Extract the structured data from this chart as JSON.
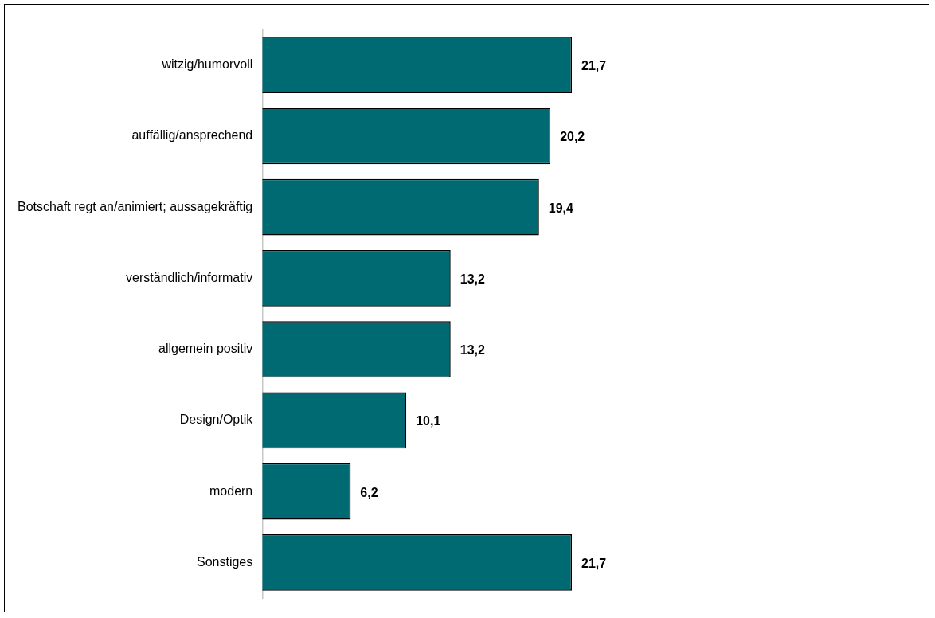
{
  "chart_data": {
    "type": "bar",
    "orientation": "horizontal",
    "value_labels": [
      "21,7",
      "20,2",
      "19,4",
      "13,2",
      "13,2",
      "10,1",
      "6,2",
      "21,7"
    ],
    "categories": [
      "witzig/humorvoll",
      "auffällig/ansprechend",
      "Botschaft regt an/animiert; aussagekräftig",
      "verständlich/informativ",
      "allgemein positiv",
      "Design/Optik",
      "modern",
      "Sonstiges"
    ],
    "values": [
      21.7,
      20.2,
      19.4,
      13.2,
      13.2,
      10.1,
      6.2,
      21.7
    ],
    "color": "#006a73"
  }
}
